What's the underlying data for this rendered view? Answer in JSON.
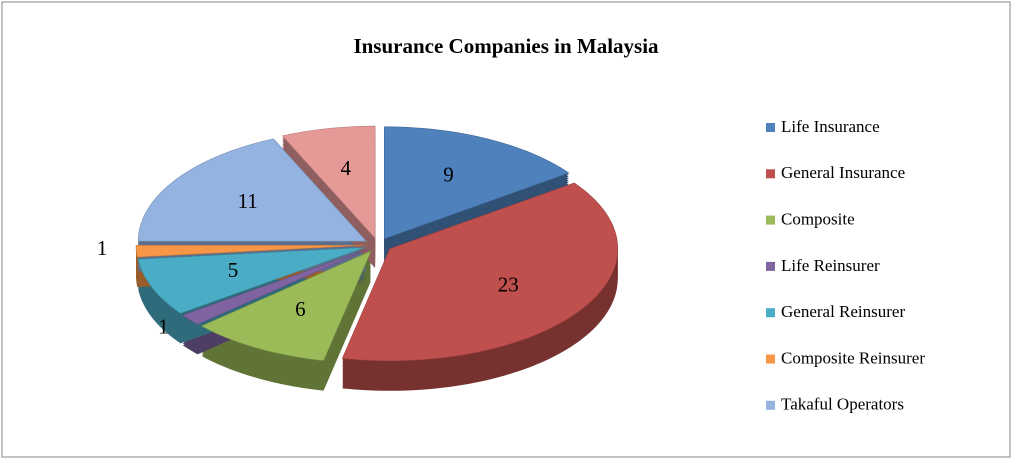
{
  "chart_data": {
    "type": "pie",
    "title": "Insurance Companies in Malaysia",
    "categories": [
      "Life Insurance",
      "General Insurance",
      "Composite",
      "Life Reinsurer",
      "General Reinsurer",
      "Composite Reinsurer",
      "Takaful Operators",
      null
    ],
    "values": [
      9,
      23,
      6,
      1,
      5,
      1,
      11,
      4
    ],
    "colors": [
      "#4f81bd",
      "#c0504d",
      "#9bbb59",
      "#8064a2",
      "#4bacc6",
      "#f79646",
      "#95b3e0",
      "#e59a98"
    ],
    "legend": "right"
  }
}
